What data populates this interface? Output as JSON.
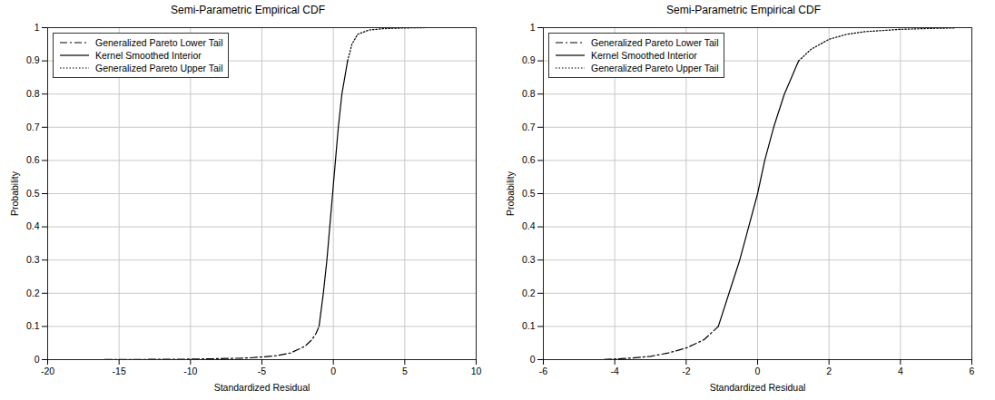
{
  "chart_data": [
    {
      "type": "line",
      "title": "Semi-Parametric Empirical CDF",
      "x_label": "Standardized Residual",
      "y_label": "Probability",
      "xlim": [
        -20,
        10
      ],
      "xticks": [
        -20,
        -15,
        -10,
        -5,
        0,
        5,
        10
      ],
      "ylim": [
        0,
        1
      ],
      "yticks": [
        0,
        0.1,
        0.2,
        0.3,
        0.4,
        0.5,
        0.6,
        0.7,
        0.8,
        0.9,
        1
      ],
      "grid": true,
      "legend": "upper left",
      "series": [
        {
          "name": "Generalized Pareto Lower Tail",
          "color": "#000000",
          "line_style": "dashdot",
          "x": [
            -16,
            -14,
            -12,
            -10,
            -8,
            -6,
            -5,
            -4,
            -3,
            -2,
            -1.5,
            -1.2,
            -1.0
          ],
          "values": [
            0.0003,
            0.0005,
            0.001,
            0.0015,
            0.003,
            0.005,
            0.008,
            0.012,
            0.02,
            0.04,
            0.06,
            0.08,
            0.1
          ]
        },
        {
          "name": "Kernel Smoothed Interior",
          "color": "#000000",
          "line_style": "solid",
          "x": [
            -1.0,
            -0.7,
            -0.45,
            -0.25,
            -0.05,
            0.15,
            0.35,
            0.6,
            1.0
          ],
          "values": [
            0.1,
            0.2,
            0.3,
            0.4,
            0.5,
            0.6,
            0.7,
            0.8,
            0.9
          ]
        },
        {
          "name": "Generalized Pareto Upper Tail",
          "color": "#000000",
          "line_style": "dotted",
          "x": [
            1.0,
            1.3,
            1.7,
            2.5,
            3.5,
            5,
            6.5
          ],
          "values": [
            0.9,
            0.95,
            0.98,
            0.993,
            0.997,
            0.999,
            1.0
          ]
        }
      ]
    },
    {
      "type": "line",
      "title": "Semi-Parametric Empirical CDF",
      "x_label": "Standardized Residual",
      "y_label": "Probability",
      "xlim": [
        -6,
        6
      ],
      "xticks": [
        -6,
        -4,
        -2,
        0,
        2,
        4,
        6
      ],
      "ylim": [
        0,
        1
      ],
      "yticks": [
        0,
        0.1,
        0.2,
        0.3,
        0.4,
        0.5,
        0.6,
        0.7,
        0.8,
        0.9,
        1
      ],
      "grid": true,
      "legend": "upper left",
      "series": [
        {
          "name": "Generalized Pareto Lower Tail",
          "color": "#000000",
          "line_style": "dashdot",
          "x": [
            -4.3,
            -4,
            -3.5,
            -3,
            -2.5,
            -2,
            -1.5,
            -1.1
          ],
          "values": [
            0.0005,
            0.002,
            0.005,
            0.01,
            0.02,
            0.035,
            0.06,
            0.1
          ]
        },
        {
          "name": "Kernel Smoothed Interior",
          "color": "#000000",
          "line_style": "solid",
          "x": [
            -1.1,
            -0.8,
            -0.5,
            -0.25,
            0,
            0.2,
            0.45,
            0.75,
            1.15
          ],
          "values": [
            0.1,
            0.2,
            0.3,
            0.4,
            0.5,
            0.6,
            0.7,
            0.8,
            0.9
          ]
        },
        {
          "name": "Generalized Pareto Upper Tail",
          "color": "#000000",
          "line_style": "dotted",
          "x": [
            1.15,
            1.5,
            2,
            2.5,
            3,
            4,
            5,
            5.5
          ],
          "values": [
            0.9,
            0.935,
            0.965,
            0.98,
            0.988,
            0.995,
            0.998,
            0.999
          ]
        }
      ]
    }
  ]
}
